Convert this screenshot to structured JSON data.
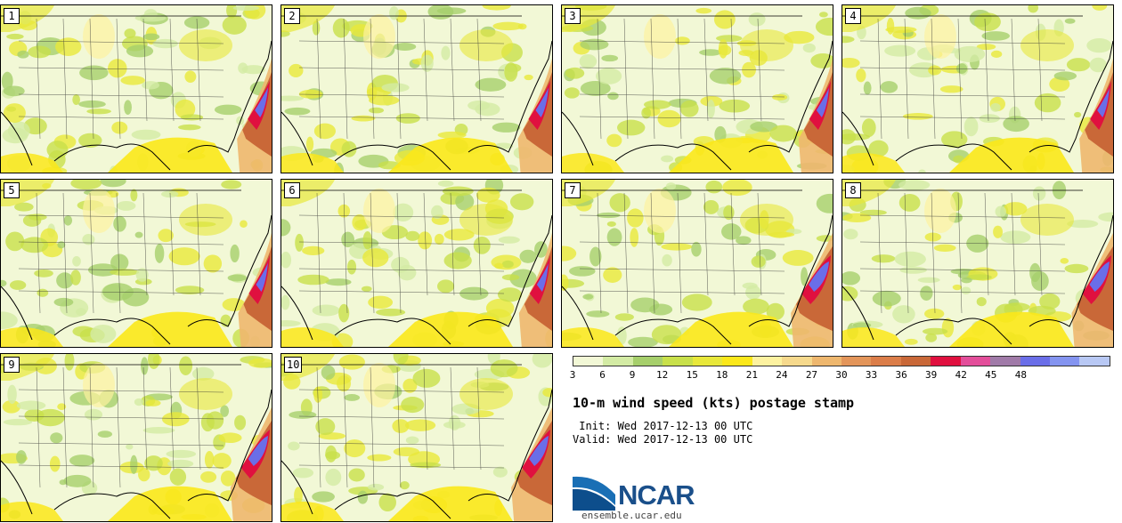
{
  "stamps": [
    {
      "label": "1"
    },
    {
      "label": "2"
    },
    {
      "label": "3"
    },
    {
      "label": "4"
    },
    {
      "label": "5"
    },
    {
      "label": "6"
    },
    {
      "label": "7"
    },
    {
      "label": "8"
    },
    {
      "label": "9"
    },
    {
      "label": "10"
    }
  ],
  "colorbar": {
    "colors": [
      "#f2f8d6",
      "#d3eba4",
      "#a6cf6b",
      "#c8e04a",
      "#e8e83a",
      "#fbe81a",
      "#fdf2a0",
      "#f6d98c",
      "#eeb76e",
      "#e3955a",
      "#db7d49",
      "#c96838",
      "#e0103f",
      "#e34e9a",
      "#a07aa8",
      "#6a6ee8",
      "#8494f0",
      "#b8c8f4"
    ],
    "labels": [
      "3",
      "6",
      "9",
      "12",
      "15",
      "18",
      "21",
      "24",
      "27",
      "30",
      "33",
      "36",
      "39",
      "42",
      "45",
      "48"
    ]
  },
  "title": "10-m wind speed (kts) postage stamp",
  "init": " Init: Wed 2017-12-13 00 UTC",
  "valid": "Valid: Wed 2017-12-13 00 UTC",
  "logo": {
    "name": "NCAR",
    "url": "ensemble.ucar.edu",
    "color": "#1a4f8a"
  }
}
